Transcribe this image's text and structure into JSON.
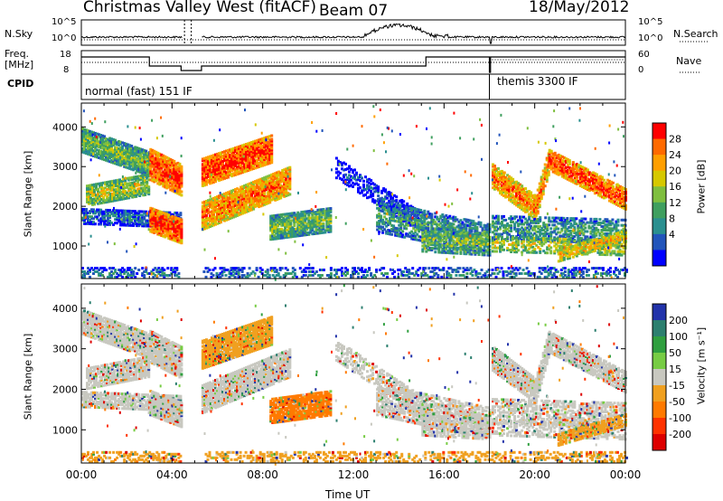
{
  "header": {
    "station": "Christmas Valley West (fitACF)",
    "beam": "Beam 07",
    "date": "18/May/2012"
  },
  "side_labels": {
    "nsky": "N.Sky",
    "nsky_ticks": [
      "10^5",
      "10^0"
    ],
    "nsearch": "N.Search",
    "nsearch_ticks": [
      "10^5",
      "10^0"
    ],
    "freq": "Freq.",
    "freq_unit": "[MHz]",
    "freq_ticks": [
      "18",
      "8"
    ],
    "nave": "Nave",
    "nave_ticks": [
      "60",
      "0"
    ],
    "cpid": "CPID"
  },
  "cpid_modes": [
    {
      "label": "normal (fast) 151 IF",
      "start_hour": 0
    },
    {
      "label": "themis 3300 IF",
      "start_hour": 18
    }
  ],
  "chart_data": [
    {
      "type": "heatmap",
      "name": "power",
      "ylabel": "Slant Range [km]",
      "xlabel": "",
      "yticks": [
        1000,
        2000,
        3000,
        4000
      ],
      "ylim": [
        180,
        4600
      ],
      "xlim": [
        0,
        24
      ],
      "colorbar_label": "Power [dB]",
      "colorbar_ticks": [
        "28",
        "24",
        "20",
        "16",
        "12",
        "8",
        "4"
      ],
      "colorbar_colors": [
        "#ff0000",
        "#ff6a00",
        "#ff9f00",
        "#d6c800",
        "#7fbf3f",
        "#3f9f5f",
        "#2a8f8f",
        "#2255bb",
        "#0000ff"
      ]
    },
    {
      "type": "heatmap",
      "name": "velocity",
      "ylabel": "Slant Range [km]",
      "xlabel": "Time UT",
      "yticks": [
        1000,
        2000,
        3000,
        4000
      ],
      "ylim": [
        180,
        4600
      ],
      "xlim": [
        0,
        24
      ],
      "xtick_labels": [
        "00:00",
        "04:00",
        "08:00",
        "12:00",
        "16:00",
        "20:00",
        "00:00"
      ],
      "colorbar_label": "Velocity [m s⁻¹]",
      "colorbar_ticks": [
        "200",
        "100",
        "50",
        "15",
        "-15",
        "-50",
        "-100",
        "-200"
      ],
      "colorbar_colors": [
        "#2233aa",
        "#2c7f6f",
        "#2f9f3f",
        "#77cc44",
        "#c8c8c0",
        "#f0a020",
        "#ff7a00",
        "#ff3300",
        "#dd0000"
      ]
    }
  ]
}
